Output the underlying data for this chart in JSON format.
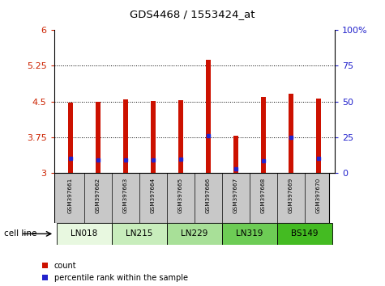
{
  "title": "GDS4468 / 1553424_at",
  "samples": [
    "GSM397661",
    "GSM397662",
    "GSM397663",
    "GSM397664",
    "GSM397665",
    "GSM397666",
    "GSM397667",
    "GSM397668",
    "GSM397669",
    "GSM397670"
  ],
  "cell_lines": [
    {
      "name": "LN018",
      "cols": [
        0,
        1
      ],
      "color": "#e8f8e0"
    },
    {
      "name": "LN215",
      "cols": [
        2,
        3
      ],
      "color": "#c8edbc"
    },
    {
      "name": "LN229",
      "cols": [
        4,
        5
      ],
      "color": "#a8e098"
    },
    {
      "name": "LN319",
      "cols": [
        6,
        7
      ],
      "color": "#6dcc55"
    },
    {
      "name": "BS149",
      "cols": [
        8,
        9
      ],
      "color": "#44bb22"
    }
  ],
  "count_values": [
    4.47,
    4.49,
    4.55,
    4.51,
    4.53,
    5.37,
    3.79,
    4.6,
    4.67,
    4.57
  ],
  "percentile_values": [
    3.3,
    3.28,
    3.28,
    3.27,
    3.29,
    3.78,
    3.08,
    3.25,
    3.75,
    3.3
  ],
  "ymin": 3.0,
  "ymax": 6.0,
  "yticks": [
    3.0,
    3.75,
    4.5,
    5.25,
    6.0
  ],
  "ytick_labels": [
    "3",
    "3.75",
    "4.5",
    "5.25",
    "6"
  ],
  "right_yticks": [
    0,
    25,
    50,
    75,
    100
  ],
  "bar_color": "#cc1100",
  "percentile_color": "#2222cc",
  "bar_width": 0.18,
  "bar_bottom": 3.0,
  "legend_count_label": "count",
  "legend_percentile_label": "percentile rank within the sample",
  "cell_line_label": "cell line",
  "tick_label_color_left": "#cc2200",
  "tick_label_color_right": "#2222cc",
  "sample_label_bg": "#c8c8c8"
}
